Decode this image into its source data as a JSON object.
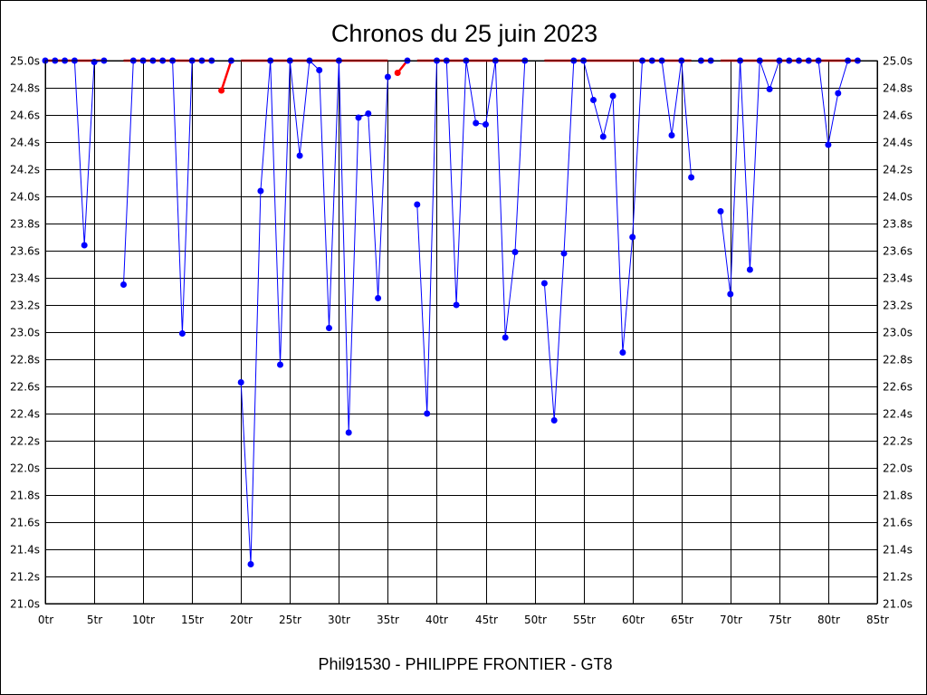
{
  "chart_data": {
    "type": "line",
    "title": "Chronos du 25 juin 2023",
    "footer": "Phil91530 - PHILIPPE FRONTIER - GT8",
    "xlabel": "",
    "ylabel": "",
    "xlim": [
      0,
      85
    ],
    "ylim": [
      21.0,
      25.0
    ],
    "grid": true,
    "x_ticks": [
      "0tr",
      "5tr",
      "10tr",
      "15tr",
      "20tr",
      "25tr",
      "30tr",
      "35tr",
      "40tr",
      "45tr",
      "50tr",
      "55tr",
      "60tr",
      "65tr",
      "70tr",
      "75tr",
      "80tr",
      "85tr"
    ],
    "y_ticks": [
      "25.0s",
      "24.8s",
      "24.6s",
      "24.4s",
      "24.2s",
      "24.0s",
      "23.8s",
      "23.6s",
      "23.4s",
      "23.2s",
      "23.0s",
      "22.8s",
      "22.6s",
      "22.4s",
      "22.2s",
      "22.0s",
      "21.8s",
      "21.6s",
      "21.4s",
      "21.2s",
      "21.0s"
    ],
    "series": [
      {
        "color": "#0000ff",
        "segments": [
          [
            [
              0,
              25.0
            ],
            [
              1,
              25.0
            ],
            [
              2,
              25.0
            ],
            [
              3,
              25.0
            ],
            [
              4,
              23.64
            ],
            [
              5,
              24.99
            ],
            [
              6,
              25.0
            ]
          ],
          [
            [
              8,
              23.35
            ],
            [
              9,
              25.0
            ],
            [
              10,
              25.0
            ],
            [
              11,
              25.0
            ],
            [
              12,
              25.0
            ],
            [
              13,
              25.0
            ],
            [
              14,
              22.99
            ],
            [
              15,
              25.0
            ],
            [
              16,
              25.0
            ],
            [
              17,
              25.0
            ]
          ],
          [
            [
              19,
              25.0
            ]
          ],
          [
            [
              20,
              22.63
            ],
            [
              21,
              21.29
            ],
            [
              22,
              24.04
            ],
            [
              23,
              25.0
            ],
            [
              24,
              22.76
            ],
            [
              25,
              25.0
            ],
            [
              26,
              24.3
            ],
            [
              27,
              25.0
            ],
            [
              28,
              24.93
            ],
            [
              29,
              23.03
            ],
            [
              30,
              25.0
            ],
            [
              31,
              22.26
            ],
            [
              32,
              24.58
            ],
            [
              33,
              24.61
            ],
            [
              34,
              23.25
            ],
            [
              35,
              24.88
            ]
          ],
          [
            [
              37,
              25.0
            ]
          ],
          [
            [
              38,
              23.94
            ],
            [
              39,
              22.4
            ],
            [
              40,
              25.0
            ],
            [
              41,
              25.0
            ],
            [
              42,
              23.2
            ],
            [
              43,
              25.0
            ],
            [
              44,
              24.54
            ],
            [
              45,
              24.53
            ],
            [
              46,
              25.0
            ],
            [
              47,
              22.96
            ],
            [
              48,
              23.59
            ],
            [
              49,
              25.0
            ]
          ],
          [
            [
              51,
              23.36
            ],
            [
              52,
              22.35
            ],
            [
              53,
              23.58
            ],
            [
              54,
              25.0
            ],
            [
              55,
              25.0
            ],
            [
              56,
              24.71
            ],
            [
              57,
              24.44
            ],
            [
              58,
              24.74
            ],
            [
              59,
              22.85
            ],
            [
              60,
              23.7
            ],
            [
              61,
              25.0
            ],
            [
              62,
              25.0
            ],
            [
              63,
              25.0
            ],
            [
              64,
              24.45
            ],
            [
              65,
              25.0
            ],
            [
              66,
              24.14
            ]
          ],
          [
            [
              67,
              25.0
            ],
            [
              68,
              25.0
            ]
          ],
          [
            [
              69,
              23.89
            ],
            [
              70,
              23.28
            ],
            [
              71,
              25.0
            ],
            [
              72,
              23.46
            ],
            [
              73,
              25.0
            ],
            [
              74,
              24.79
            ],
            [
              75,
              25.0
            ],
            [
              76,
              25.0
            ],
            [
              77,
              25.0
            ],
            [
              78,
              25.0
            ],
            [
              79,
              25.0
            ],
            [
              80,
              24.38
            ],
            [
              81,
              24.76
            ],
            [
              82,
              25.0
            ],
            [
              83,
              25.0
            ]
          ]
        ]
      },
      {
        "color": "#ff0000",
        "segments": [
          [
            [
              0,
              25.0
            ],
            [
              6,
              25.0
            ]
          ],
          [
            [
              8,
              25.0
            ],
            [
              17,
              25.0
            ]
          ],
          [
            [
              18,
              24.78
            ],
            [
              19,
              25.0
            ]
          ],
          [
            [
              20,
              25.0
            ],
            [
              35,
              25.0
            ]
          ],
          [
            [
              36,
              24.91
            ],
            [
              37,
              25.0
            ]
          ],
          [
            [
              38,
              25.0
            ],
            [
              49,
              25.0
            ]
          ],
          [
            [
              51,
              25.0
            ],
            [
              66,
              25.0
            ]
          ],
          [
            [
              67,
              25.0
            ],
            [
              68,
              25.0
            ]
          ],
          [
            [
              69,
              25.0
            ],
            [
              83,
              25.0
            ]
          ]
        ]
      }
    ],
    "points": [
      {
        "color": "#ff0000",
        "pts": [
          [
            18,
            24.78
          ],
          [
            36,
            24.91
          ]
        ]
      }
    ]
  }
}
